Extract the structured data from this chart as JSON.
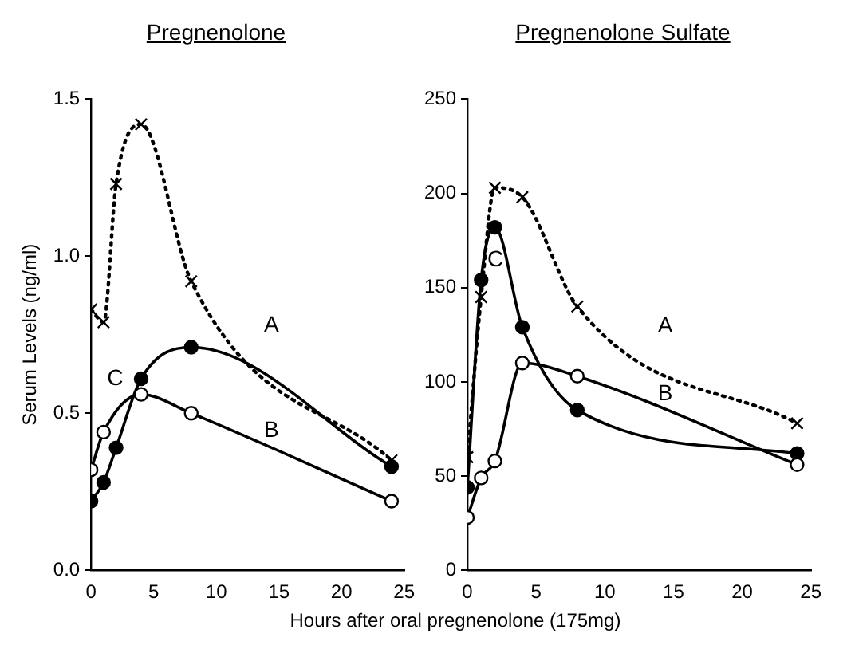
{
  "chart_data": [
    {
      "type": "line",
      "title": "Pregnenolone",
      "xlabel": "Hours after oral pregnenolone (175mg)",
      "ylabel": "Serum Levels (ng/ml)",
      "x": [
        0,
        1,
        2,
        4,
        8,
        24
      ],
      "xlim": [
        0,
        25
      ],
      "xticks": [
        0,
        5,
        10,
        15,
        20,
        25
      ],
      "ylim": [
        0,
        1.5
      ],
      "yticks": [
        {
          "value": 0,
          "label": "0.0"
        },
        {
          "value": 0.5,
          "label": "0.5"
        },
        {
          "value": 1,
          "label": "1.0"
        },
        {
          "value": 1.5,
          "label": "1.5"
        }
      ],
      "grid": false,
      "legend": false,
      "series": [
        {
          "name": "A",
          "color": "#000000",
          "marker": "cross",
          "line_style": "dotted",
          "values": [
            0.83,
            0.79,
            1.23,
            1.42,
            0.92,
            0.35
          ]
        },
        {
          "name": "B",
          "color": "#000000",
          "marker": "circle",
          "line_style": "solid",
          "values": [
            0.32,
            0.44,
            null,
            0.56,
            0.5,
            0.22
          ]
        },
        {
          "name": "C",
          "color": "#000000",
          "marker": "circle",
          "line_style": "solid",
          "values": [
            0.22,
            0.28,
            0.39,
            0.61,
            0.71,
            0.33
          ]
        }
      ]
    },
    {
      "type": "line",
      "title": "Pregnenolone Sulfate",
      "x": [
        0,
        1,
        2,
        4,
        8,
        24
      ],
      "xlim": [
        0,
        25
      ],
      "xticks": [
        0,
        5,
        10,
        15,
        20,
        25
      ],
      "ylim": [
        0,
        250
      ],
      "yticks": [
        0,
        50,
        100,
        150,
        200,
        250
      ],
      "grid": false,
      "legend": false,
      "series": [
        {
          "name": "A",
          "color": "#000000",
          "marker": "cross",
          "line_style": "dotted",
          "values": [
            60,
            145,
            203,
            198,
            140,
            78
          ]
        },
        {
          "name": "B",
          "color": "#000000",
          "marker": "circle",
          "line_style": "solid",
          "values": [
            28,
            49,
            58,
            110,
            103,
            56
          ]
        },
        {
          "name": "C",
          "color": "#000000",
          "marker": "circle",
          "line_style": "solid",
          "values": [
            44,
            154,
            182,
            129,
            85,
            62
          ]
        }
      ]
    }
  ]
}
